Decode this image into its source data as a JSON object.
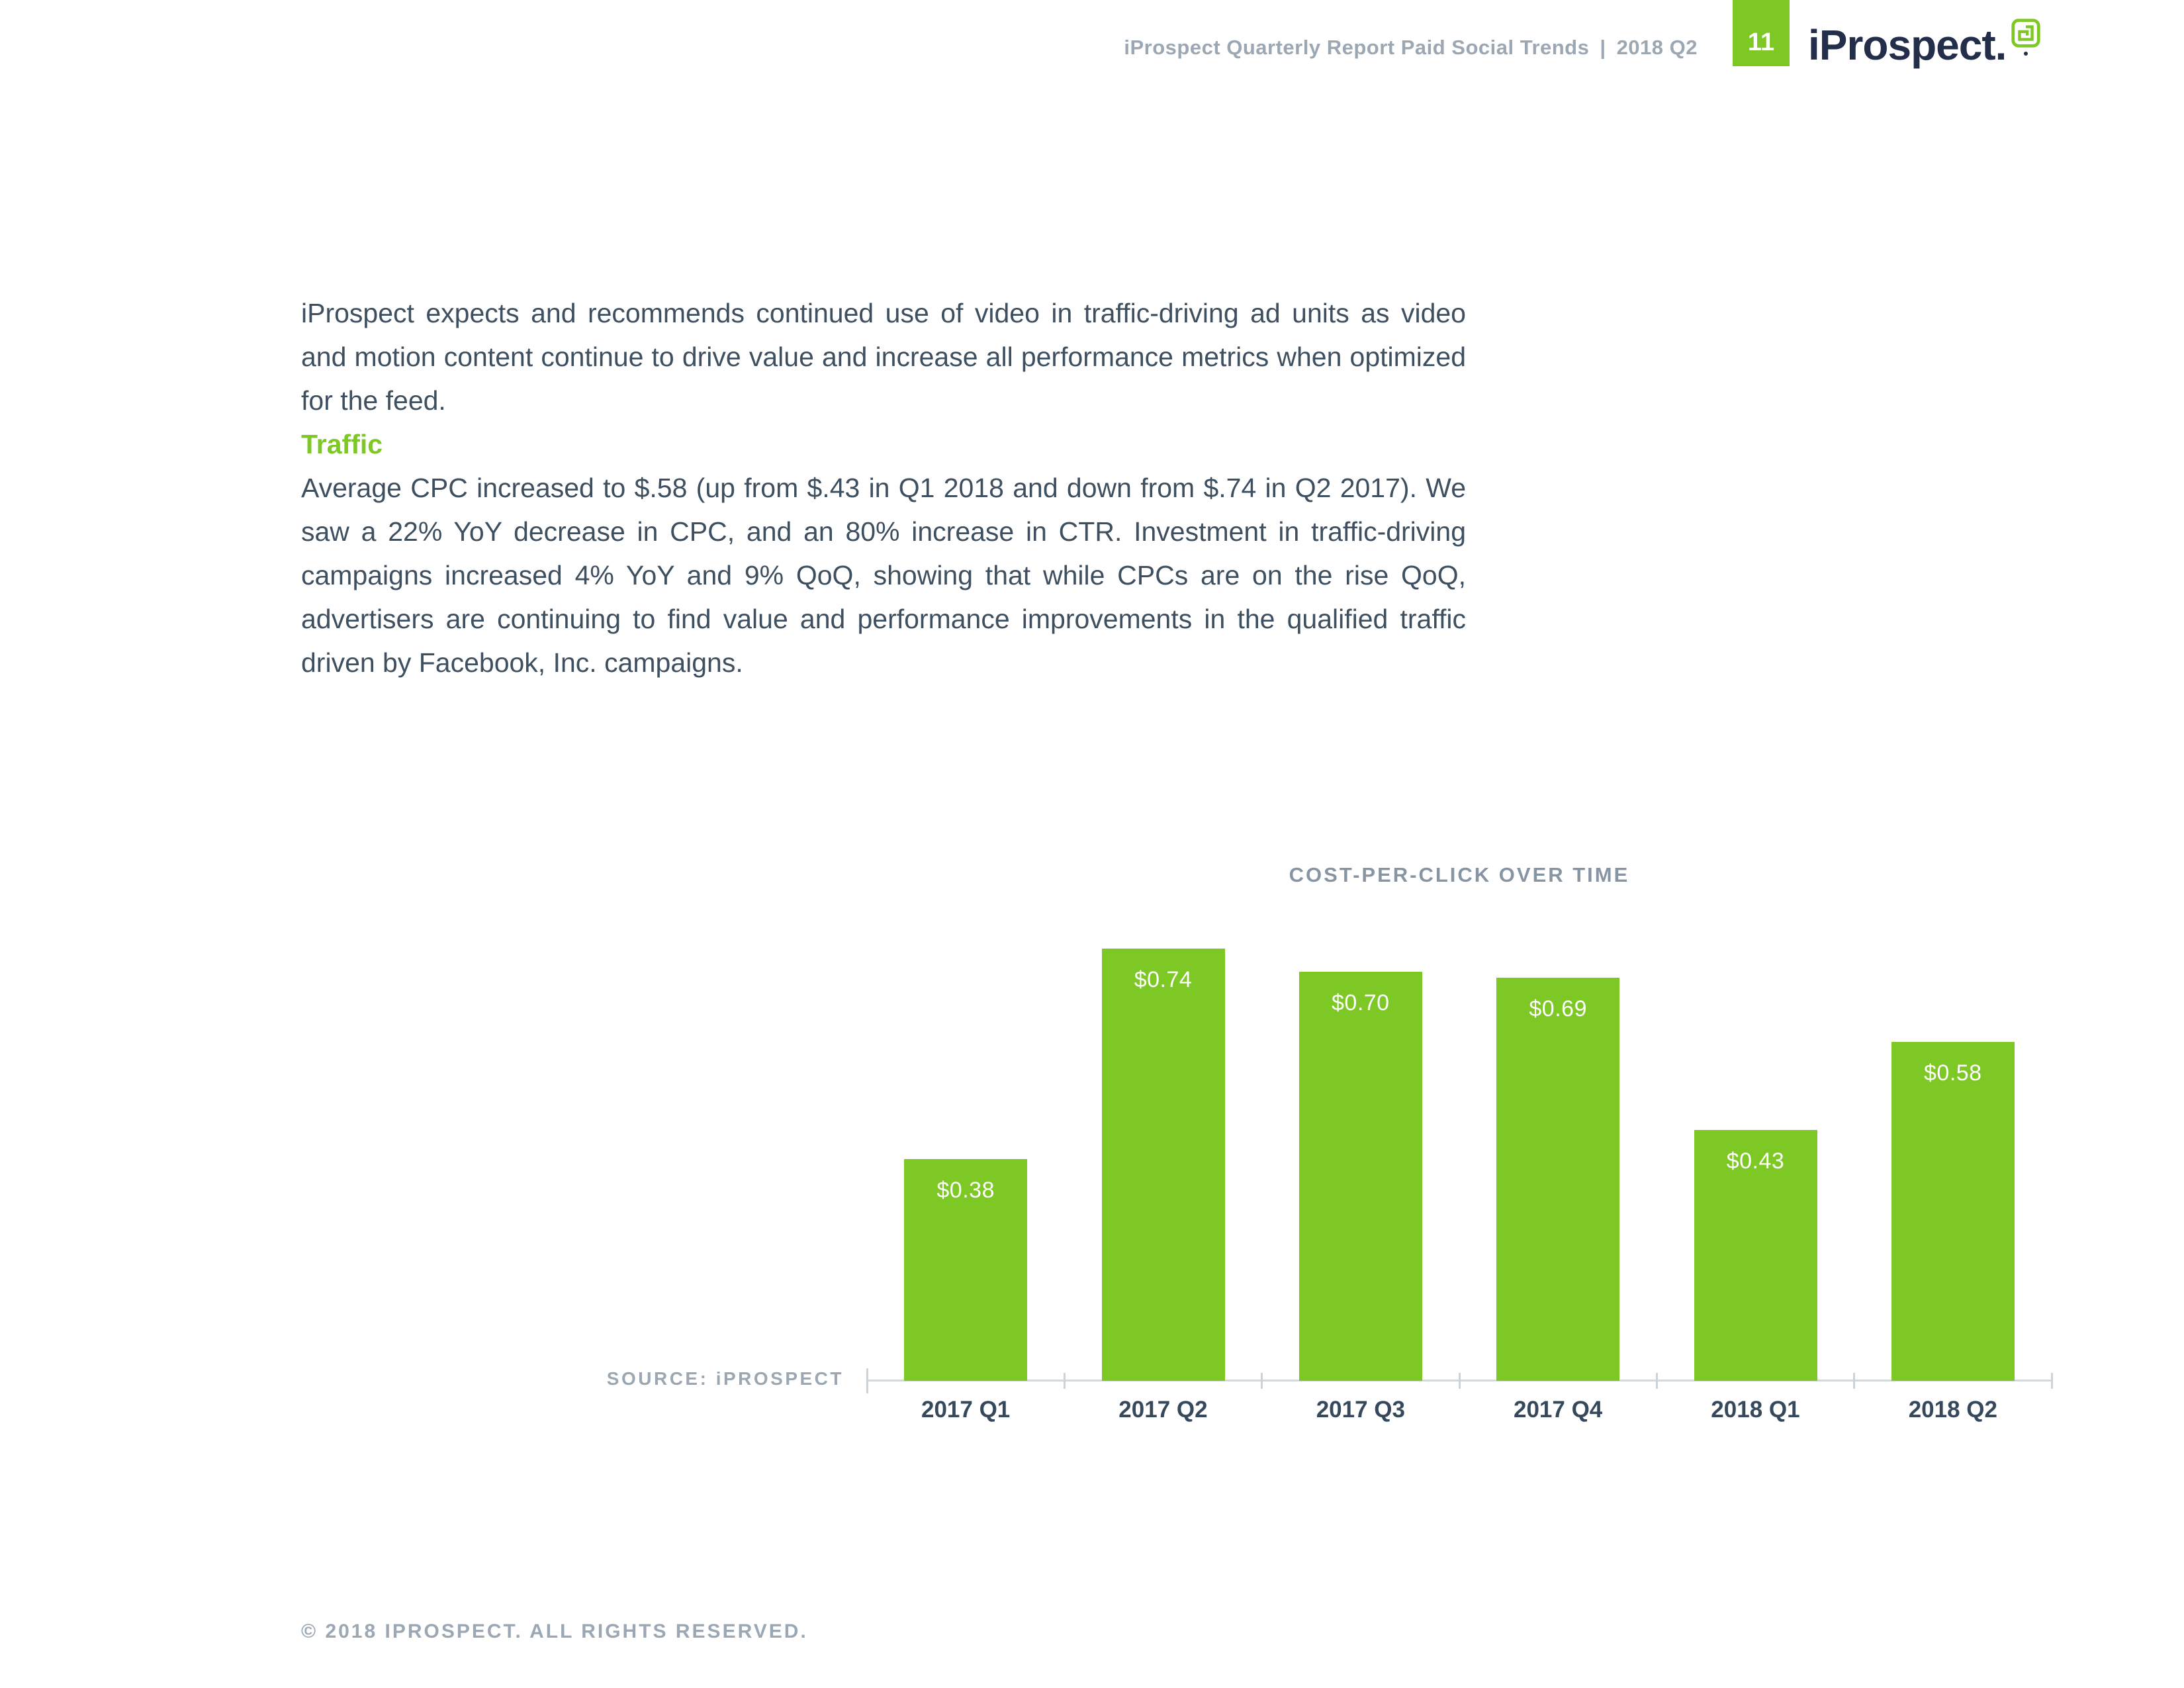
{
  "header": {
    "report_title": "iProspect Quarterly Report Paid Social Trends",
    "separator": "|",
    "edition": "2018 Q2",
    "page_number": "11",
    "logo_text": "iProspect."
  },
  "content": {
    "intro_paragraph": "iProspect expects and recommends continued use of video in traffic-driving ad units as video and motion content continue to drive value and increase all performance metrics when optimized for the feed.",
    "section_heading": "Traffic",
    "traffic_paragraph": "Average CPC increased to $.58 (up from $.43 in Q1 2018 and down from $.74 in Q2 2017). We saw a 22% YoY decrease in CPC, and an 80% increase in CTR. Investment in traffic-driving campaigns increased 4% YoY and 9% QoQ, showing that while CPCs are on the rise QoQ, advertisers are continuing to find value and performance improvements in the qualified traffic driven by Facebook, Inc. campaigns."
  },
  "chart_data": {
    "type": "bar",
    "title": "COST-PER-CLICK OVER TIME",
    "categories": [
      "2017 Q1",
      "2017 Q2",
      "2017 Q3",
      "2017 Q4",
      "2018 Q1",
      "2018 Q2"
    ],
    "values": [
      0.38,
      0.74,
      0.7,
      0.69,
      0.43,
      0.58
    ],
    "labels": [
      "$0.38",
      "$0.74",
      "$0.70",
      "$0.69",
      "$0.43",
      "$0.58"
    ],
    "xlabel": "",
    "ylabel": "",
    "ylim": [
      0,
      0.8
    ],
    "grid": false,
    "legend": false,
    "bar_color": "#7dc824",
    "value_label_position": "inside-top",
    "source": "SOURCE: iPROSPECT"
  },
  "footer": {
    "copyright": "© 2018 IPROSPECT. ALL RIGHTS RESERVED."
  },
  "colors": {
    "accent_green": "#7dc824",
    "logo_navy": "#232e4a",
    "body_text": "#3e4f60",
    "muted_gray": "#9ba7b2"
  }
}
